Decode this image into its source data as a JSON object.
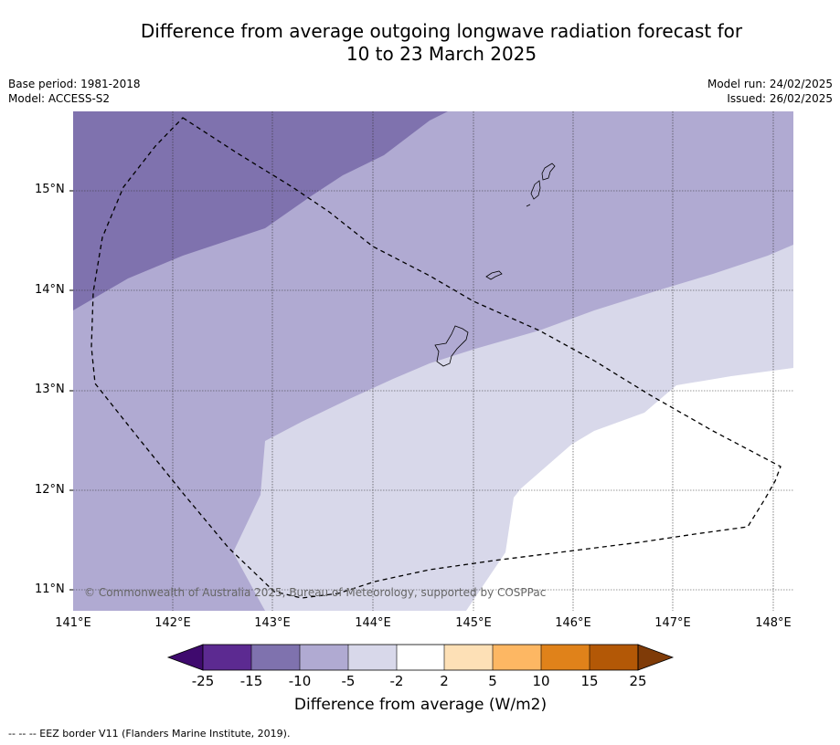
{
  "title_line1": "Difference from average outgoing longwave radiation forecast for",
  "title_line2": "10 to 23 March 2025",
  "base_period": "Base period: 1981-2018",
  "model": "Model: ACCESS-S2",
  "model_run": "Model run: 24/02/2025",
  "issued": "Issued: 26/02/2025",
  "copyright": "© Commonwealth of Australia 2025, Bureau of Meteorology, supported by COSPPac",
  "lat_labels": [
    "15°N",
    "14°N",
    "13°N",
    "12°N",
    "11°N"
  ],
  "lon_labels": [
    "141°E",
    "142°E",
    "143°E",
    "144°E",
    "145°E",
    "146°E",
    "147°E",
    "148°E"
  ],
  "colorbar": {
    "ticks": [
      "-25",
      "-15",
      "-10",
      "-5",
      "-2",
      "2",
      "5",
      "10",
      "15",
      "25"
    ],
    "colors": [
      "#3f0a6e",
      "#5c2a91",
      "#7f72ae",
      "#b0aad2",
      "#d8d8ea",
      "#ffffff",
      "#fde0b6",
      "#fdb763",
      "#e0821a",
      "#b35806",
      "#7f3b08"
    ],
    "label": "Difference from average (W/m2)"
  },
  "footnote": "--  --  -- EEZ border V11 (Flanders Marine Institute, 2019)."
}
